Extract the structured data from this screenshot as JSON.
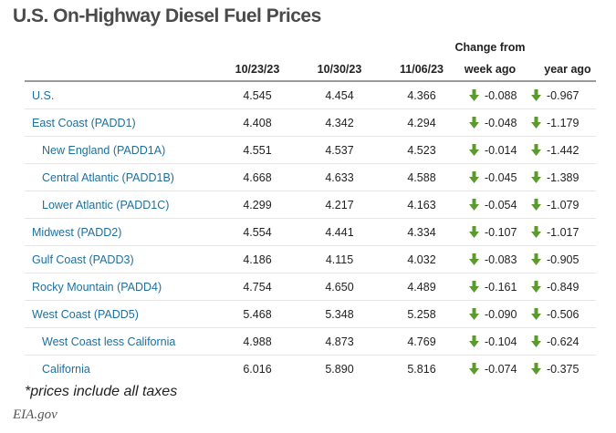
{
  "title": "U.S. On-Highway Diesel Fuel Prices",
  "chart_data": {
    "type": "table",
    "header_group": "Change from",
    "columns": [
      "10/23/23",
      "10/30/23",
      "11/06/23",
      "week ago",
      "year ago"
    ],
    "rows": [
      {
        "name": "U.S.",
        "level": 0,
        "values": [
          "4.545",
          "4.454",
          "4.366"
        ],
        "week_change": "-0.088",
        "year_change": "-0.967"
      },
      {
        "name": "East Coast (PADD1)",
        "level": 0,
        "values": [
          "4.408",
          "4.342",
          "4.294"
        ],
        "week_change": "-0.048",
        "year_change": "-1.179"
      },
      {
        "name": "New England (PADD1A)",
        "level": 1,
        "values": [
          "4.551",
          "4.537",
          "4.523"
        ],
        "week_change": "-0.014",
        "year_change": "-1.442"
      },
      {
        "name": "Central Atlantic (PADD1B)",
        "level": 1,
        "values": [
          "4.668",
          "4.633",
          "4.588"
        ],
        "week_change": "-0.045",
        "year_change": "-1.389"
      },
      {
        "name": "Lower Atlantic (PADD1C)",
        "level": 1,
        "values": [
          "4.299",
          "4.217",
          "4.163"
        ],
        "week_change": "-0.054",
        "year_change": "-1.079"
      },
      {
        "name": "Midwest (PADD2)",
        "level": 0,
        "values": [
          "4.554",
          "4.441",
          "4.334"
        ],
        "week_change": "-0.107",
        "year_change": "-1.017"
      },
      {
        "name": "Gulf Coast (PADD3)",
        "level": 0,
        "values": [
          "4.186",
          "4.115",
          "4.032"
        ],
        "week_change": "-0.083",
        "year_change": "-0.905"
      },
      {
        "name": "Rocky Mountain (PADD4)",
        "level": 0,
        "values": [
          "4.754",
          "4.650",
          "4.489"
        ],
        "week_change": "-0.161",
        "year_change": "-0.849"
      },
      {
        "name": "West Coast (PADD5)",
        "level": 0,
        "values": [
          "5.468",
          "5.348",
          "5.258"
        ],
        "week_change": "-0.090",
        "year_change": "-0.506"
      },
      {
        "name": "West Coast less California",
        "level": 1,
        "values": [
          "4.988",
          "4.873",
          "4.769"
        ],
        "week_change": "-0.104",
        "year_change": "-0.624"
      },
      {
        "name": "California",
        "level": 1,
        "values": [
          "6.016",
          "5.890",
          "5.816"
        ],
        "week_change": "-0.074",
        "year_change": "-0.375"
      }
    ],
    "arrow_icon": "down-arrow-icon",
    "arrow_color": "#5a9a2e"
  },
  "footnote": "*prices include all taxes",
  "source": "EIA.gov",
  "colors": {
    "title": "#4a4a4a",
    "region_name": "#1f6f9c",
    "header_rule": "#9a9a9a",
    "row_rule": "#e6e6e6"
  }
}
